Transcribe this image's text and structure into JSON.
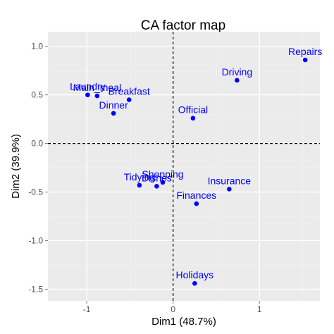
{
  "chart_data": {
    "type": "scatter",
    "title": "CA factor map",
    "xlabel": "Dim1 (48.7%)",
    "ylabel": "Dim2 (39.9%)",
    "xlim": [
      -1.45,
      1.7
    ],
    "ylim": [
      -1.62,
      1.15
    ],
    "xticks": [
      -1,
      0,
      1
    ],
    "xtick_labels": [
      "-1",
      "0",
      "1"
    ],
    "yticks": [
      -1.5,
      -1.0,
      -0.5,
      0.0,
      0.5,
      1.0
    ],
    "ytick_labels": [
      "-1.5",
      "-1.0",
      "-0.5",
      "0.0",
      "0.5",
      "1.0"
    ],
    "grid": true,
    "reference_lines": {
      "x": 0,
      "y": 0,
      "style": "dashed"
    },
    "point_color": "#0000ff",
    "panel_background": "#ebebeb",
    "points": [
      {
        "label": "Laundry",
        "x": -0.99,
        "y": 0.5
      },
      {
        "label": "Main_meal",
        "x": -0.88,
        "y": 0.49
      },
      {
        "label": "Dinner",
        "x": -0.69,
        "y": 0.31
      },
      {
        "label": "Breakfast",
        "x": -0.51,
        "y": 0.45
      },
      {
        "label": "Tidying",
        "x": -0.39,
        "y": -0.43
      },
      {
        "label": "Dishes",
        "x": -0.19,
        "y": -0.44
      },
      {
        "label": "Shopping",
        "x": -0.12,
        "y": -0.4
      },
      {
        "label": "Official",
        "x": 0.23,
        "y": 0.26
      },
      {
        "label": "Driving",
        "x": 0.74,
        "y": 0.65
      },
      {
        "label": "Finances",
        "x": 0.27,
        "y": -0.62
      },
      {
        "label": "Insurance",
        "x": 0.65,
        "y": -0.47
      },
      {
        "label": "Repairs",
        "x": 1.53,
        "y": 0.86
      },
      {
        "label": "Holidays",
        "x": 0.25,
        "y": -1.44
      }
    ]
  }
}
